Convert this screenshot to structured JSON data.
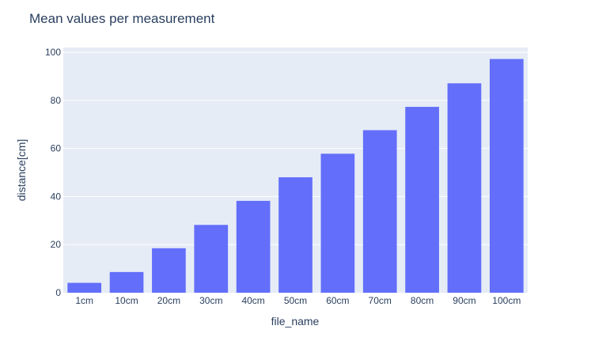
{
  "chart_data": {
    "type": "bar",
    "title": "Mean values per measurement",
    "xlabel": "file_name",
    "ylabel": "distance[cm]",
    "categories": [
      "1cm",
      "10cm",
      "20cm",
      "30cm",
      "40cm",
      "50cm",
      "60cm",
      "70cm",
      "80cm",
      "90cm",
      "100cm"
    ],
    "values": [
      4.1,
      8.6,
      18.5,
      28.2,
      38.2,
      48.0,
      57.8,
      67.6,
      77.3,
      87.1,
      97.2
    ],
    "ylim": [
      0,
      102
    ],
    "yticks": [
      0,
      20,
      40,
      60,
      80,
      100
    ],
    "grid": true,
    "legend": "none",
    "colors": {
      "bar": "#636efa",
      "plot_background": "#e5ecf6",
      "grid": "#ffffff",
      "text": "#2a3f5f"
    }
  }
}
